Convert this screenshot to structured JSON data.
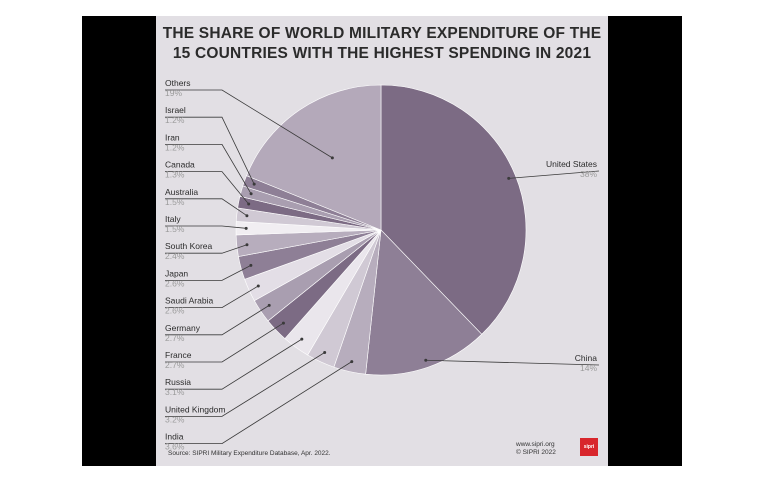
{
  "colors": {
    "panel_bg": "#e2dfe4",
    "label_name": "#2b2b2b",
    "label_value": "#9b9b9b",
    "leader_line": "#3a3a3a",
    "logo_red": "#d8262c"
  },
  "source": "Source: SIPRI Military Expenditure Database, Apr. 2022.",
  "website": "www.sipri.org",
  "copyright": "© SIPRI 2022",
  "logo_text": "sipri",
  "chart_data": {
    "type": "pie",
    "title_lines": [
      "THE SHARE OF WORLD MILITARY EXPENDITURE OF THE",
      "15 COUNTRIES WITH THE HIGHEST SPENDING IN 2021"
    ],
    "start_angle_deg": 0,
    "direction": "clockwise",
    "slices": [
      {
        "name": "United States",
        "value": 38,
        "label": "38%",
        "color": "#7c6b84"
      },
      {
        "name": "China",
        "value": 14,
        "label": "14%",
        "color": "#8e7f96"
      },
      {
        "name": "India",
        "value": 3.6,
        "label": "3.6%",
        "color": "#b7adbd"
      },
      {
        "name": "United Kingdom",
        "value": 3.2,
        "label": "3.2%",
        "color": "#d0c9d4"
      },
      {
        "name": "Russia",
        "value": 3.1,
        "label": "3.1%",
        "color": "#eae6ec"
      },
      {
        "name": "France",
        "value": 2.7,
        "label": "2.7%",
        "color": "#7c6b84"
      },
      {
        "name": "Germany",
        "value": 2.7,
        "label": "2.7%",
        "color": "#a99eb0"
      },
      {
        "name": "Saudi Arabia",
        "value": 2.6,
        "label": "2.6%",
        "color": "#e3dee6"
      },
      {
        "name": "Japan",
        "value": 2.6,
        "label": "2.6%",
        "color": "#8e7f96"
      },
      {
        "name": "South Korea",
        "value": 2.4,
        "label": "2.4%",
        "color": "#b7adbd"
      },
      {
        "name": "Italy",
        "value": 1.5,
        "label": "1.5%",
        "color": "#f1eef2"
      },
      {
        "name": "Australia",
        "value": 1.5,
        "label": "1.5%",
        "color": "#d0c9d4"
      },
      {
        "name": "Canada",
        "value": 1.3,
        "label": "1.3%",
        "color": "#7c6b84"
      },
      {
        "name": "Iran",
        "value": 1.2,
        "label": "1.2%",
        "color": "#a99eb0"
      },
      {
        "name": "Israel",
        "value": 1.2,
        "label": "1.2%",
        "color": "#8e7f96"
      },
      {
        "name": "Others",
        "value": 19,
        "label": "19%",
        "color": "#b4a9ba"
      }
    ]
  }
}
